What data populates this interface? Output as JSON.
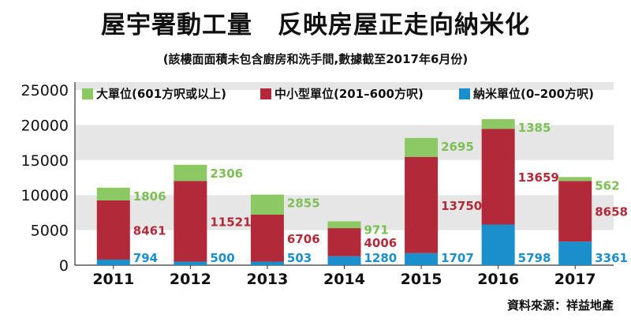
{
  "chart_data": {
    "type": "bar",
    "stacked": true,
    "title": "屋宇署動工量　反映房屋正走向納米化",
    "subtitle": "(該樓面面積未包含廚房和洗手間,數據截至2017年6月份)",
    "source": "資料來源：祥益地產",
    "categories": [
      "2011",
      "2012",
      "2013",
      "2014",
      "2015",
      "2016",
      "2017"
    ],
    "series": [
      {
        "name": "納米單位(0–200方呎)",
        "color": "#1a8fcc",
        "label_color": "#1a8fcc",
        "values": [
          794,
          500,
          503,
          1280,
          1707,
          5798,
          3361
        ]
      },
      {
        "name": "中小型單位(201–600方呎)",
        "color": "#b22a3a",
        "label_color": "#b22a3a",
        "values": [
          8461,
          11521,
          6706,
          4006,
          13750,
          13659,
          8658
        ]
      },
      {
        "name": "大單位(601方呎或以上)",
        "color": "#8cc864",
        "label_color": "#7dbf55",
        "values": [
          1806,
          2306,
          2855,
          971,
          2695,
          1385,
          562
        ]
      }
    ],
    "legend_order": [
      2,
      1,
      0
    ],
    "legend_position": "top",
    "yticks": [
      0,
      5000,
      10000,
      15000,
      20000,
      25000
    ],
    "ylim": [
      0,
      25000
    ],
    "grid": "alternating horizontal bands"
  }
}
